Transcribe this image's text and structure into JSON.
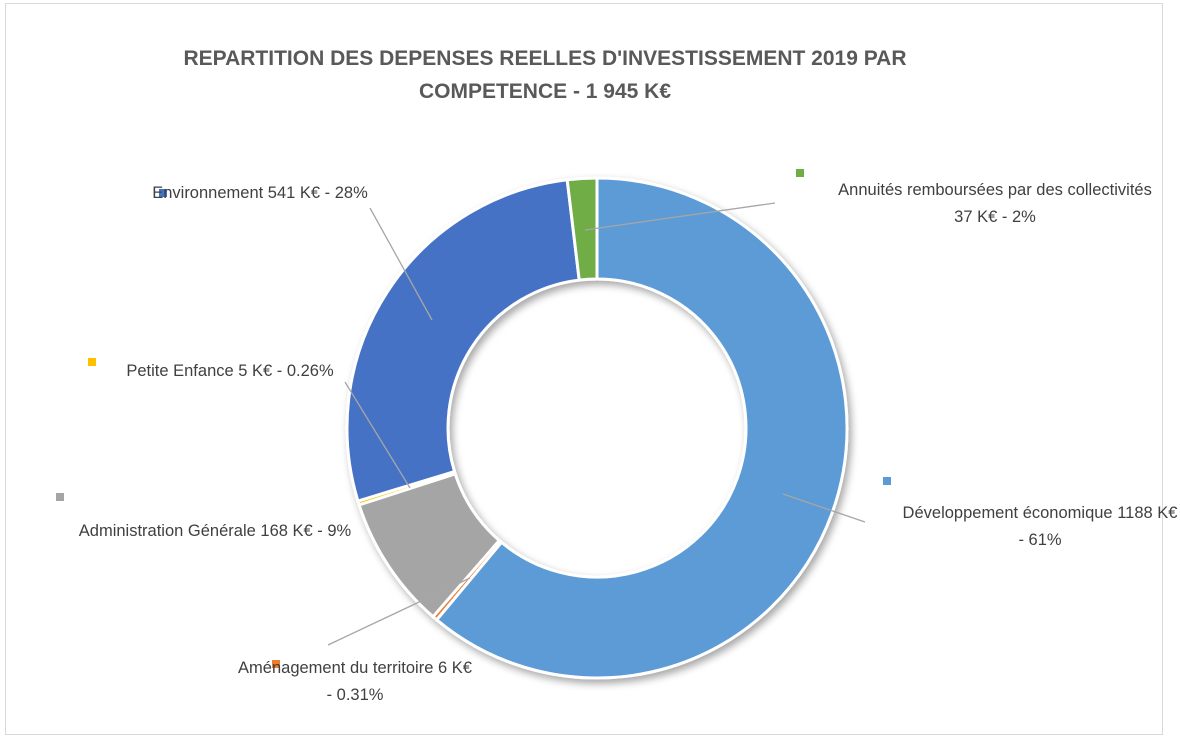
{
  "chart_data": {
    "type": "donut",
    "title": "REPARTITION DES DEPENSES REELLES D'INVESTISSEMENT 2019 PAR COMPETENCE -  1 945 K€",
    "categories": [
      "Développement économique",
      "Aménagement du territoire",
      "Administration Générale",
      "Petite Enfance",
      "Environnement",
      "Annuités remboursées par des collectivités"
    ],
    "values": [
      1188,
      6,
      168,
      5,
      541,
      37
    ],
    "value_labels": [
      "1188 K€ - 61%",
      "6 K€ - 0.31%",
      "168 K€ - 9%",
      "5 K€ - 0.26%",
      "541 K€ - 28%",
      "37 K€ - 2%"
    ],
    "colors": [
      "#5b9bd5",
      "#ed7d31",
      "#a5a5a5",
      "#ffc000",
      "#4472c4",
      "#70ad47"
    ]
  }
}
